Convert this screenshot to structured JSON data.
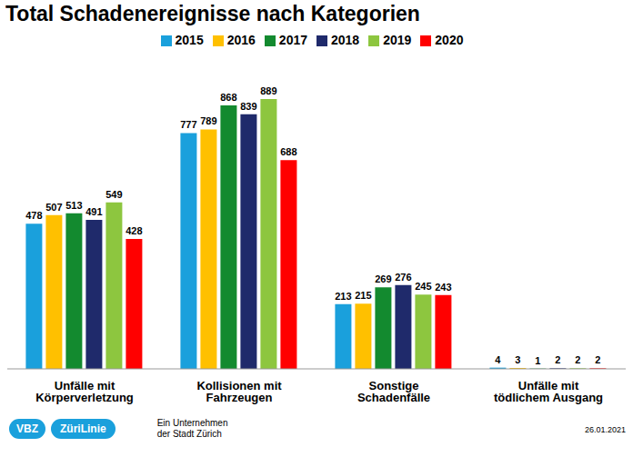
{
  "chart_data": {
    "type": "bar",
    "title": "Total Schadenereignisse nach Kategorien",
    "categories": [
      "Unfälle mit Körperverletzung",
      "Kollisionen mit Fahrzeugen",
      "Sonstige Schadenfälle",
      "Unfälle mit tödlichem Ausgang"
    ],
    "series": [
      {
        "name": "2015",
        "color": "#1aa0dc",
        "values": [
          478,
          777,
          213,
          4
        ]
      },
      {
        "name": "2016",
        "color": "#ffc000",
        "values": [
          507,
          789,
          215,
          3
        ]
      },
      {
        "name": "2017",
        "color": "#138a2f",
        "values": [
          513,
          868,
          269,
          1
        ]
      },
      {
        "name": "2018",
        "color": "#1f2a6b",
        "values": [
          491,
          839,
          276,
          2
        ]
      },
      {
        "name": "2019",
        "color": "#8dc63f",
        "values": [
          549,
          889,
          245,
          2
        ]
      },
      {
        "name": "2020",
        "color": "#ff0000",
        "values": [
          428,
          688,
          243,
          2
        ]
      }
    ],
    "ylim": [
      0,
      1000
    ],
    "yticks": [
      0,
      1000
    ],
    "tick_labels": "x",
    "grid": false,
    "legend": "top",
    "data_labels": true,
    "annotations": [
      "VBZ",
      "ZüriLinie",
      "Ein Unternehmen",
      "der Stadt Zürich",
      "26.01.2021"
    ]
  }
}
